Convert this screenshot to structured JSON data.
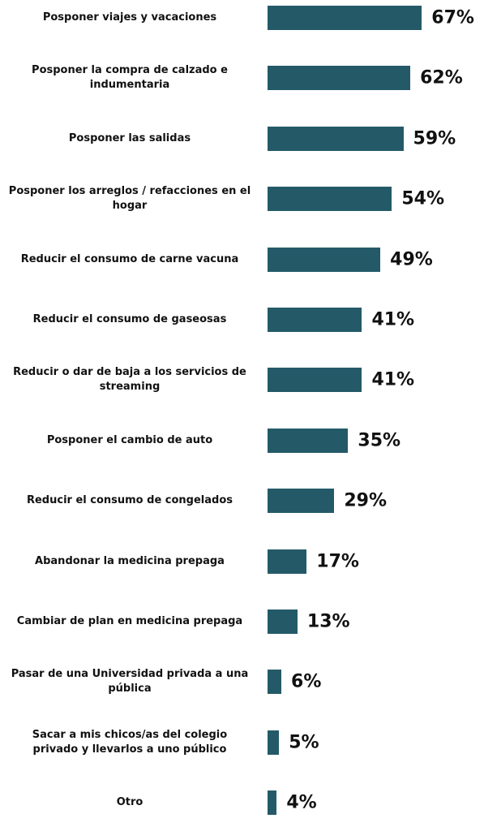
{
  "chart_data": {
    "type": "bar",
    "orientation": "horizontal",
    "color": "#245a68",
    "categories": [
      "Posponer viajes y vacaciones",
      "Posponer la compra de calzado e indumentaria",
      "Posponer las salidas",
      "Posponer los arreglos / refacciones en el hogar",
      "Reducir el consumo de carne vacuna",
      "Reducir el consumo de gaseosas",
      "Reducir o dar de baja a los servicios de streaming",
      "Posponer el cambio de auto",
      "Reducir el consumo de congelados",
      "Abandonar la medicina prepaga",
      "Cambiar de plan en medicina prepaga",
      "Pasar de una Universidad privada a una pública",
      "Sacar a mis chicos/as del colegio privado y llevarlos a uno público",
      "Otro"
    ],
    "values": [
      67,
      62,
      59,
      54,
      49,
      41,
      41,
      35,
      29,
      17,
      13,
      6,
      5,
      4
    ],
    "value_labels": [
      "67%",
      "62%",
      "59%",
      "54%",
      "49%",
      "41%",
      "41%",
      "35%",
      "29%",
      "17%",
      "13%",
      "6%",
      "5%",
      "4%"
    ]
  }
}
